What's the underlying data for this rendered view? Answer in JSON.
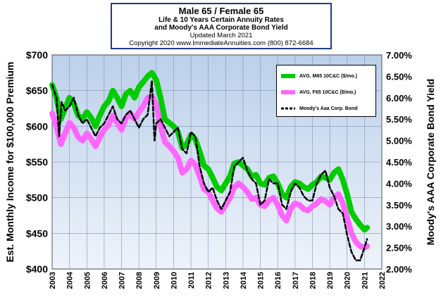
{
  "title": {
    "line1": "Male 65 / Female 65",
    "line2": "Life & 10 Years Certain Annuity Rates",
    "line3": "and Moody's AAA Corporate Bond Yield",
    "line4": "Updated March 2021",
    "line5": "Copyright 2020   www.ImmediateAnnuities.com   (800) 872-6684"
  },
  "chart_data": {
    "type": "line",
    "ylabel": "Est. Monthly Income for $100,000 Premium",
    "y2label": "Moody's AAA Corporate Bond Yield",
    "ylim": [
      400,
      700
    ],
    "y2lim": [
      2.0,
      7.0
    ],
    "xlim": [
      2003,
      2022
    ],
    "y_ticks": [
      "$400",
      "$450",
      "$500",
      "$550",
      "$600",
      "$650",
      "$700"
    ],
    "y_tick_values": [
      400,
      450,
      500,
      550,
      600,
      650,
      700
    ],
    "y2_ticks": [
      "2.00%",
      "2.50%",
      "3.00%",
      "3.50%",
      "4.00%",
      "4.50%",
      "5.00%",
      "5.50%",
      "6.00%",
      "6.50%",
      "7.00%"
    ],
    "y2_tick_values": [
      2.0,
      2.5,
      3.0,
      3.5,
      4.0,
      4.5,
      5.0,
      5.5,
      6.0,
      6.5,
      7.0
    ],
    "x_ticks": [
      "2003",
      "2004",
      "2005",
      "2006",
      "2007",
      "2008",
      "2009",
      "2010",
      "2011",
      "2012",
      "2013",
      "2014",
      "2015",
      "2016",
      "2017",
      "2018",
      "2019",
      "2020",
      "2021",
      "2022"
    ],
    "x_tick_values": [
      2003,
      2004,
      2005,
      2006,
      2007,
      2008,
      2009,
      2010,
      2011,
      2012,
      2013,
      2014,
      2015,
      2016,
      2017,
      2018,
      2019,
      2020,
      2021,
      2022
    ],
    "grid": true,
    "legend_position": "top-right",
    "series": [
      {
        "name": "AVG. M65 10C&C ($/mo.)",
        "color": "#00cc00",
        "axis": "left",
        "style": "solid",
        "x": [
          2003.0,
          2003.25,
          2003.5,
          2003.75,
          2004.0,
          2004.25,
          2004.5,
          2004.75,
          2005.0,
          2005.25,
          2005.5,
          2005.75,
          2006.0,
          2006.25,
          2006.5,
          2006.75,
          2007.0,
          2007.25,
          2007.5,
          2007.75,
          2008.0,
          2008.25,
          2008.5,
          2008.75,
          2009.0,
          2009.25,
          2009.5,
          2009.75,
          2010.0,
          2010.25,
          2010.5,
          2010.75,
          2011.0,
          2011.25,
          2011.5,
          2011.75,
          2012.0,
          2012.25,
          2012.5,
          2012.75,
          2013.0,
          2013.25,
          2013.5,
          2013.75,
          2014.0,
          2014.25,
          2014.5,
          2014.75,
          2015.0,
          2015.25,
          2015.5,
          2015.75,
          2016.0,
          2016.25,
          2016.5,
          2016.75,
          2017.0,
          2017.25,
          2017.5,
          2017.75,
          2018.0,
          2018.25,
          2018.5,
          2018.75,
          2019.0,
          2019.25,
          2019.5,
          2019.75,
          2020.0,
          2020.25,
          2020.5,
          2020.75,
          2021.0,
          2021.15
        ],
        "values": [
          658,
          640,
          610,
          625,
          640,
          632,
          615,
          610,
          620,
          612,
          600,
          615,
          628,
          635,
          650,
          640,
          628,
          645,
          650,
          640,
          655,
          662,
          670,
          675,
          665,
          640,
          610,
          605,
          600,
          592,
          570,
          575,
          588,
          582,
          565,
          545,
          540,
          528,
          515,
          510,
          520,
          530,
          548,
          550,
          545,
          540,
          530,
          532,
          520,
          518,
          528,
          530,
          520,
          505,
          500,
          515,
          522,
          520,
          515,
          512,
          518,
          522,
          530,
          528,
          525,
          535,
          540,
          525,
          505,
          480,
          470,
          462,
          455,
          458
        ]
      },
      {
        "name": "AVG. F65 10C&C ($/mo.)",
        "color": "#ff66ff",
        "axis": "left",
        "style": "solid",
        "x": [
          2003.0,
          2003.25,
          2003.5,
          2003.75,
          2004.0,
          2004.25,
          2004.5,
          2004.75,
          2005.0,
          2005.25,
          2005.5,
          2005.75,
          2006.0,
          2006.25,
          2006.5,
          2006.75,
          2007.0,
          2007.25,
          2007.5,
          2007.75,
          2008.0,
          2008.25,
          2008.5,
          2008.75,
          2009.0,
          2009.25,
          2009.5,
          2009.75,
          2010.0,
          2010.25,
          2010.5,
          2010.75,
          2011.0,
          2011.25,
          2011.5,
          2011.75,
          2012.0,
          2012.25,
          2012.5,
          2012.75,
          2013.0,
          2013.25,
          2013.5,
          2013.75,
          2014.0,
          2014.25,
          2014.5,
          2014.75,
          2015.0,
          2015.25,
          2015.5,
          2015.75,
          2016.0,
          2016.25,
          2016.5,
          2016.75,
          2017.0,
          2017.25,
          2017.5,
          2017.75,
          2018.0,
          2018.25,
          2018.5,
          2018.75,
          2019.0,
          2019.25,
          2019.5,
          2019.75,
          2020.0,
          2020.25,
          2020.5,
          2020.75,
          2021.0,
          2021.15
        ],
        "values": [
          618,
          600,
          575,
          590,
          605,
          598,
          585,
          580,
          590,
          582,
          572,
          585,
          595,
          602,
          615,
          605,
          595,
          612,
          618,
          610,
          620,
          628,
          640,
          642,
          630,
          600,
          578,
          572,
          565,
          556,
          535,
          540,
          552,
          546,
          530,
          512,
          508,
          496,
          485,
          480,
          490,
          500,
          515,
          520,
          515,
          508,
          498,
          500,
          490,
          488,
          496,
          500,
          490,
          475,
          468,
          485,
          492,
          490,
          484,
          482,
          488,
          492,
          498,
          495,
          490,
          500,
          505,
          492,
          472,
          450,
          438,
          432,
          430,
          432
        ]
      },
      {
        "name": "Moody's Aaa Corp. Bond",
        "color": "#000000",
        "axis": "right",
        "style": "dashed",
        "x": [
          2003.0,
          2003.25,
          2003.4,
          2003.55,
          2003.75,
          2004.0,
          2004.25,
          2004.5,
          2004.75,
          2005.0,
          2005.25,
          2005.5,
          2005.75,
          2006.0,
          2006.25,
          2006.5,
          2006.75,
          2007.0,
          2007.25,
          2007.5,
          2007.75,
          2008.0,
          2008.25,
          2008.5,
          2008.75,
          2008.9,
          2009.0,
          2009.25,
          2009.5,
          2009.75,
          2010.0,
          2010.25,
          2010.5,
          2010.75,
          2011.0,
          2011.25,
          2011.5,
          2011.75,
          2012.0,
          2012.25,
          2012.5,
          2012.75,
          2013.0,
          2013.25,
          2013.5,
          2013.75,
          2014.0,
          2014.25,
          2014.5,
          2014.75,
          2015.0,
          2015.25,
          2015.5,
          2015.75,
          2016.0,
          2016.25,
          2016.5,
          2016.75,
          2017.0,
          2017.25,
          2017.5,
          2017.75,
          2018.0,
          2018.25,
          2018.5,
          2018.75,
          2019.0,
          2019.25,
          2019.5,
          2019.75,
          2020.0,
          2020.25,
          2020.5,
          2020.75,
          2021.0,
          2021.15
        ],
        "values": [
          6.3,
          6.0,
          5.1,
          5.9,
          5.7,
          5.8,
          6.0,
          5.6,
          5.4,
          5.5,
          5.3,
          5.1,
          5.3,
          5.4,
          5.6,
          5.8,
          5.5,
          5.4,
          5.6,
          5.7,
          5.5,
          5.3,
          5.5,
          5.6,
          6.4,
          5.0,
          5.4,
          5.5,
          5.3,
          5.1,
          5.2,
          5.3,
          4.8,
          4.7,
          5.2,
          5.1,
          4.4,
          4.0,
          3.8,
          3.9,
          3.6,
          3.4,
          3.6,
          3.8,
          4.4,
          4.5,
          4.6,
          4.3,
          4.1,
          4.0,
          3.5,
          3.6,
          4.1,
          4.0,
          4.0,
          3.5,
          3.4,
          3.8,
          4.0,
          3.9,
          3.7,
          3.6,
          3.6,
          4.0,
          4.2,
          4.3,
          3.9,
          3.7,
          3.4,
          3.3,
          2.8,
          2.4,
          2.2,
          2.2,
          2.5,
          2.7
        ]
      }
    ]
  }
}
